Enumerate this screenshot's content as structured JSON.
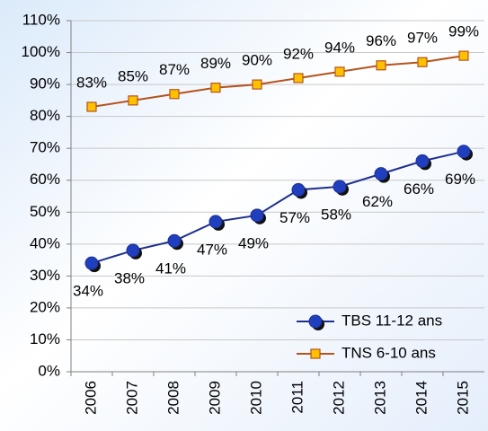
{
  "chart_data": {
    "type": "line",
    "categories": [
      "2006",
      "2007",
      "2008",
      "2009",
      "2010",
      "2011",
      "2012",
      "2013",
      "2014",
      "2015"
    ],
    "series": [
      {
        "name": "TBS 11-12 ans",
        "color": "#1f2f8f",
        "marker_color": "#1f3fbf",
        "marker": "circle",
        "values": [
          34,
          38,
          41,
          47,
          49,
          57,
          58,
          62,
          66,
          69
        ],
        "value_labels": [
          "34%",
          "38%",
          "41%",
          "47%",
          "49%",
          "57%",
          "58%",
          "62%",
          "66%",
          "69%"
        ]
      },
      {
        "name": "TNS 6-10 ans",
        "color": "#b5541c",
        "marker_color": "#ffc000",
        "marker": "square",
        "values": [
          83,
          85,
          87,
          89,
          90,
          92,
          94,
          96,
          97,
          99
        ],
        "value_labels": [
          "83%",
          "85%",
          "87%",
          "89%",
          "90%",
          "92%",
          "94%",
          "96%",
          "97%",
          "99%"
        ]
      }
    ],
    "ylim": [
      0,
      110
    ],
    "yticks": [
      {
        "value": 0,
        "label": "0%"
      },
      {
        "value": 10,
        "label": "10%"
      },
      {
        "value": 20,
        "label": "20%"
      },
      {
        "value": 30,
        "label": "30%"
      },
      {
        "value": 40,
        "label": "40%"
      },
      {
        "value": 50,
        "label": "50%"
      },
      {
        "value": 60,
        "label": "60%"
      },
      {
        "value": 70,
        "label": "70%"
      },
      {
        "value": 80,
        "label": "80%"
      },
      {
        "value": 90,
        "label": "90%"
      },
      {
        "value": 100,
        "label": "100%"
      },
      {
        "value": 110,
        "label": "110%"
      }
    ],
    "grid": true,
    "legend": "lower right"
  }
}
